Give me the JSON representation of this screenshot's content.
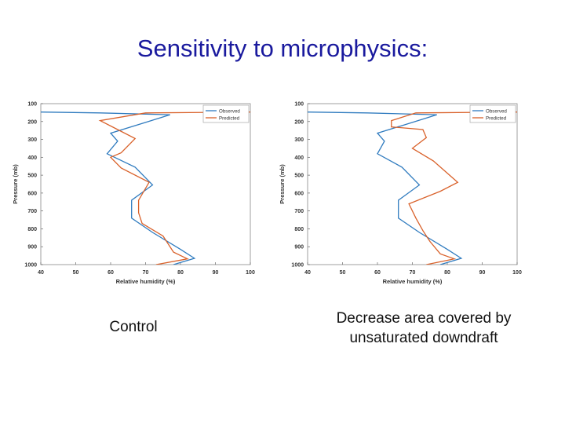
{
  "slide": {
    "title": "Sensitivity to microphysics:",
    "captions": [
      "Control",
      "Decrease area covered by unsaturated downdraft"
    ]
  },
  "colors": {
    "observed": "#2f7bbf",
    "predicted": "#d9612a",
    "title": "#1a1a9e"
  },
  "chart_data": [
    {
      "type": "line",
      "xlabel": "Relative humidity (%)",
      "ylabel": "Pressure (mb)",
      "xlim": [
        40,
        100
      ],
      "ylim": [
        1000,
        100
      ],
      "xticks": [
        40,
        50,
        60,
        70,
        80,
        90,
        100
      ],
      "yticks": [
        100,
        200,
        300,
        400,
        500,
        600,
        700,
        800,
        900,
        1000
      ],
      "legend": "top-right",
      "grid": false,
      "series": [
        {
          "name": "Observed",
          "color": "#2f7bbf",
          "points": [
            [
              0,
              147
            ],
            [
              57,
              152
            ],
            [
              77,
              162
            ],
            [
              70,
              205
            ],
            [
              60,
              265
            ],
            [
              62,
              310
            ],
            [
              59,
              380
            ],
            [
              67,
              455
            ],
            [
              72,
              555
            ],
            [
              66,
              640
            ],
            [
              66,
              740
            ],
            [
              72,
              820
            ],
            [
              80,
              915
            ],
            [
              84,
              965
            ],
            [
              78,
              1000
            ]
          ]
        },
        {
          "name": "Predicted",
          "color": "#d9612a",
          "points": [
            [
              100,
              147
            ],
            [
              70,
              152
            ],
            [
              57,
              195
            ],
            [
              62,
              245
            ],
            [
              67,
              295
            ],
            [
              63,
              375
            ],
            [
              60,
              400
            ],
            [
              63,
              460
            ],
            [
              71,
              540
            ],
            [
              68,
              640
            ],
            [
              68,
              710
            ],
            [
              69,
              770
            ],
            [
              75,
              840
            ],
            [
              78,
              930
            ],
            [
              82,
              968
            ],
            [
              73,
              1000
            ]
          ]
        }
      ]
    },
    {
      "type": "line",
      "xlabel": "Relative humidity (%)",
      "ylabel": "Pressure (mb)",
      "xlim": [
        40,
        100
      ],
      "ylim": [
        1000,
        100
      ],
      "xticks": [
        40,
        50,
        60,
        70,
        80,
        90,
        100
      ],
      "yticks": [
        100,
        200,
        300,
        400,
        500,
        600,
        700,
        800,
        900,
        1000
      ],
      "legend": "top-right",
      "grid": false,
      "series": [
        {
          "name": "Observed",
          "color": "#2f7bbf",
          "points": [
            [
              0,
              147
            ],
            [
              57,
              152
            ],
            [
              77,
              162
            ],
            [
              70,
              205
            ],
            [
              60,
              265
            ],
            [
              62,
              310
            ],
            [
              60,
              380
            ],
            [
              67,
              455
            ],
            [
              72,
              555
            ],
            [
              66,
              640
            ],
            [
              66,
              740
            ],
            [
              72,
              820
            ],
            [
              80,
              915
            ],
            [
              84,
              965
            ],
            [
              78,
              1000
            ]
          ]
        },
        {
          "name": "Predicted",
          "color": "#d9612a",
          "points": [
            [
              100,
              147
            ],
            [
              71,
              152
            ],
            [
              64,
              195
            ],
            [
              64,
              230
            ],
            [
              73,
              245
            ],
            [
              74,
              290
            ],
            [
              70,
              350
            ],
            [
              76,
              420
            ],
            [
              83,
              540
            ],
            [
              78,
              590
            ],
            [
              69,
              660
            ],
            [
              71,
              740
            ],
            [
              73,
              810
            ],
            [
              75,
              870
            ],
            [
              78,
              940
            ],
            [
              82,
              968
            ],
            [
              74,
              1000
            ]
          ]
        }
      ]
    }
  ]
}
